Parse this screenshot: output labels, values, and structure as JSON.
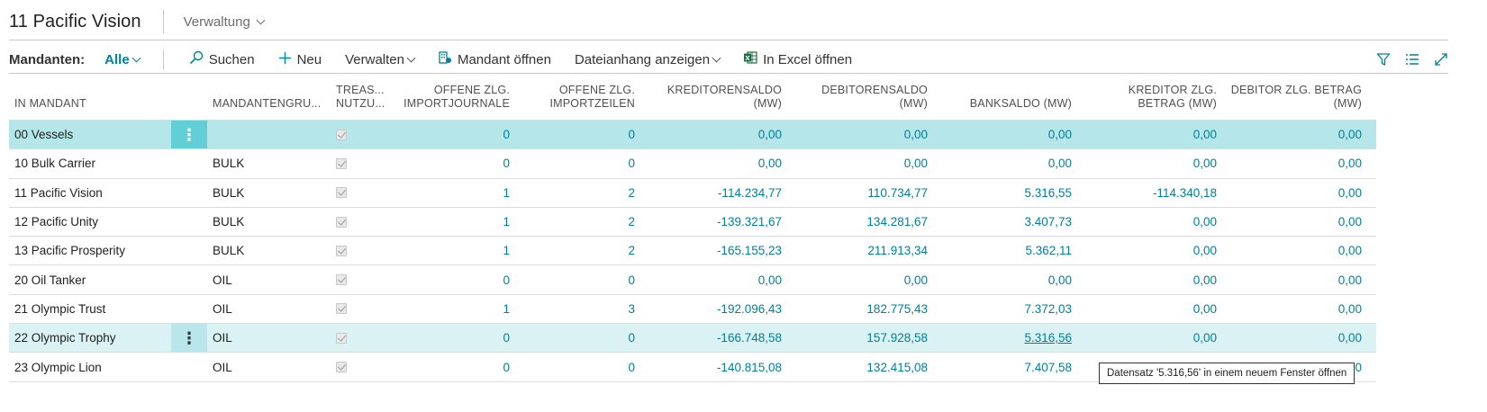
{
  "header": {
    "title": "11 Pacific Vision",
    "menu_label": "Verwaltung"
  },
  "toolbar": {
    "label": "Mandanten:",
    "filter": "Alle",
    "search": "Suchen",
    "new": "Neu",
    "manage": "Verwalten",
    "open_company": "Mandant öffnen",
    "attachment": "Dateianhang anzeigen",
    "excel": "In Excel öffnen"
  },
  "columns": {
    "name": "IN MANDANT",
    "group": "MANDANTENGRU...",
    "treas1": "TREAS...",
    "treas2": "NUTZU...",
    "journ1": "OFFENE ZLG.",
    "journ2": "IMPORTJOURNALE",
    "zeil1": "OFFENE ZLG.",
    "zeil2": "IMPORTZEILEN",
    "kred1": "KREDITORENSALDO",
    "kred2": "(MW)",
    "deb1": "DEBITORENSALDO",
    "deb2": "(MW)",
    "bank": "BANKSALDO (MW)",
    "kzlg1": "KREDITOR ZLG.",
    "kzlg2": "BETRAG (MW)",
    "dzlg1": "DEBITOR ZLG. BETRAG",
    "dzlg2": "(MW)"
  },
  "rows": [
    {
      "name": "00 Vessels",
      "group": "",
      "journ": "0",
      "zeil": "0",
      "kred": "0,00",
      "deb": "0,00",
      "bank": "0,00",
      "kzlg": "0,00",
      "dzlg": "0,00"
    },
    {
      "name": "10 Bulk Carrier",
      "group": "BULK",
      "journ": "0",
      "zeil": "0",
      "kred": "0,00",
      "deb": "0,00",
      "bank": "0,00",
      "kzlg": "0,00",
      "dzlg": "0,00"
    },
    {
      "name": "11 Pacific Vision",
      "group": "BULK",
      "journ": "1",
      "zeil": "2",
      "kred": "-114.234,77",
      "deb": "110.734,77",
      "bank": "5.316,55",
      "kzlg": "-114.340,18",
      "dzlg": "0,00"
    },
    {
      "name": "12 Pacific Unity",
      "group": "BULK",
      "journ": "1",
      "zeil": "2",
      "kred": "-139.321,67",
      "deb": "134.281,67",
      "bank": "3.407,73",
      "kzlg": "0,00",
      "dzlg": "0,00"
    },
    {
      "name": "13 Pacific Prosperity",
      "group": "BULK",
      "journ": "1",
      "zeil": "2",
      "kred": "-165.155,23",
      "deb": "211.913,34",
      "bank": "5.362,11",
      "kzlg": "0,00",
      "dzlg": "0,00"
    },
    {
      "name": "20 Oil Tanker",
      "group": "OIL",
      "journ": "0",
      "zeil": "0",
      "kred": "0,00",
      "deb": "0,00",
      "bank": "0,00",
      "kzlg": "0,00",
      "dzlg": "0,00"
    },
    {
      "name": "21 Olympic Trust",
      "group": "OIL",
      "journ": "1",
      "zeil": "3",
      "kred": "-192.096,43",
      "deb": "182.775,43",
      "bank": "7.372,03",
      "kzlg": "0,00",
      "dzlg": "0,00"
    },
    {
      "name": "22 Olympic Trophy",
      "group": "OIL",
      "journ": "0",
      "zeil": "0",
      "kred": "-166.748,58",
      "deb": "157.928,58",
      "bank": "5.316,56",
      "kzlg": "0,00",
      "dzlg": "0,00"
    },
    {
      "name": "23 Olympic Lion",
      "group": "OIL",
      "journ": "0",
      "zeil": "0",
      "kred": "-140.815,08",
      "deb": "132.415,08",
      "bank": "7.407,58",
      "kzlg": "0,00",
      "dzlg": "0,00"
    }
  ],
  "tooltip": "Datensatz '5.316,56' in einem neuem Fenster öffnen"
}
